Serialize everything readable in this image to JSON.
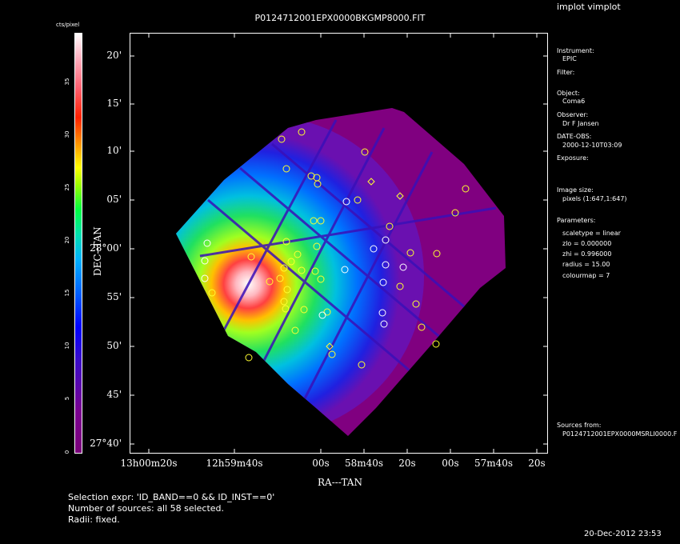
{
  "app_label": "implot vimplot",
  "title": "P0124712001EPX0000BKGMP8000.FIT",
  "colorbar": {
    "title": "cts/pixel",
    "ticks": [
      "0",
      "5",
      "10",
      "15",
      "20",
      "25",
      "30",
      "35"
    ]
  },
  "axes": {
    "ylabel": "DEC--TAN",
    "xlabel": "RA---TAN",
    "yticks": [
      "20'",
      "15'",
      "10'",
      "05'",
      "28°00'",
      "55'",
      "50'",
      "45'",
      "27°40'"
    ],
    "xticks": [
      "13h00m20s",
      "12h59m40s",
      "00s",
      "58m40s",
      "20s",
      "00s",
      "57m40s",
      "20s"
    ]
  },
  "info": {
    "instrument_label": "Instrument:",
    "instrument": "EPIC",
    "filter_label": "Filter:",
    "object_label": "Object:",
    "object": "Coma6",
    "observer_label": "Observer:",
    "observer": "Dr F Jansen",
    "date_label": "DATE-OBS:",
    "date": "2000-12-10T03:09",
    "exposure_label": "Exposure:",
    "image_size_label": "Image size:",
    "image_size": "pixels (1:647,1:647)",
    "parameters_label": "Parameters:",
    "params": [
      "scaletype = linear",
      "zlo = 0.000000",
      "zhi = 0.996000",
      "radius = 15.00",
      "colourmap = 7"
    ],
    "sources_label": "Sources from:",
    "sources": "P0124712001EPX0000MSRLI0000.F"
  },
  "footer": {
    "selection": "Selection expr: 'ID_BAND==0 && ID_INST==0'",
    "count": "Number of sources: all 58 selected.",
    "radii": "Radii: fixed."
  },
  "timestamp": "20-Dec-2012 23:53"
}
